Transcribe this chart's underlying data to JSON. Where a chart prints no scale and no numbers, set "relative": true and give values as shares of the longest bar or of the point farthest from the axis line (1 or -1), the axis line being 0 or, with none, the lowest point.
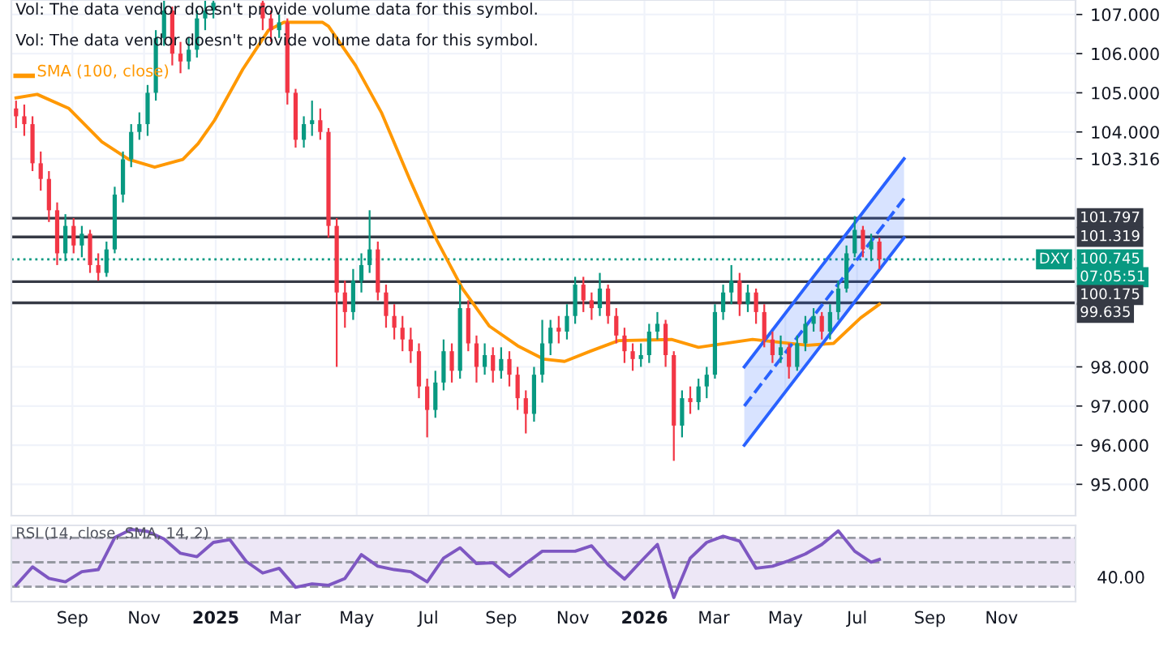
{
  "chart_data": [
    {
      "type": "candlestick",
      "tick_labels": "y",
      "grid": true,
      "annotations": [
        "Vol: The data vendor doesn't provide volume data for this symbol.",
        "Vol: The data vendor doesn't provide volume data for this symbol.",
        "DXY",
        "07:05:51"
      ],
      "xlim": [
        "2024-07-11",
        "2027-01-03"
      ],
      "xticks": [
        {
          "value": "2024-09-01",
          "label": null
        },
        {
          "value": "2024-11-01",
          "label": null
        },
        {
          "value": "2025-01-01",
          "label": null
        },
        {
          "value": "2025-03-01",
          "label": null
        },
        {
          "value": "2025-05-01",
          "label": null
        },
        {
          "value": "2025-07-01",
          "label": null
        },
        {
          "value": "2025-09-01",
          "label": null
        },
        {
          "value": "2025-11-01",
          "label": null
        },
        {
          "value": "2026-01-01",
          "label": null
        },
        {
          "value": "2026-03-01",
          "label": null
        },
        {
          "value": "2026-05-01",
          "label": null
        },
        {
          "value": "2026-07-01",
          "label": null
        },
        {
          "value": "2026-09-01",
          "label": null
        },
        {
          "value": "2026-11-01",
          "label": null
        }
      ],
      "ylim": [
        94.2,
        107.37
      ],
      "yticks": [
        {
          "value": 95,
          "label": "95.000"
        },
        {
          "value": 96,
          "label": "96.000"
        },
        {
          "value": 97,
          "label": "97.000"
        },
        {
          "value": 98,
          "label": "98.000"
        },
        103.316,
        {
          "value": 104,
          "label": "104.000"
        },
        {
          "value": 105,
          "label": "105.000"
        },
        {
          "value": 106,
          "label": "106.000"
        },
        {
          "value": 107,
          "label": "107.000"
        }
      ],
      "ref_lines": [
        {
          "axis": "y",
          "value": 101.797,
          "label": "101.797",
          "color": "#363a45"
        },
        {
          "axis": "y",
          "value": 101.319,
          "label": "101.319",
          "color": "#363a45"
        },
        {
          "axis": "y",
          "value": 100.175,
          "label": "100.175",
          "color": "#363a45"
        },
        {
          "axis": "y",
          "value": 99.635,
          "label": "99.635",
          "color": "#363a45"
        },
        {
          "axis": "y",
          "value": 100.745,
          "label": "100.745",
          "color": "#089981",
          "line_style": "dotted"
        }
      ],
      "x": [
        "2024-07-15",
        "2024-07-22",
        "2024-07-29",
        "2024-08-05",
        "2024-08-12",
        "2024-08-19",
        "2024-08-26",
        "2024-09-02",
        "2024-09-09",
        "2024-09-16",
        "2024-09-23",
        "2024-09-30",
        "2024-10-07",
        "2024-10-14",
        "2024-10-21",
        "2024-10-28",
        "2024-11-04",
        "2024-11-11",
        "2024-11-18",
        "2024-11-25",
        "2024-12-02",
        "2024-12-09",
        "2024-12-16",
        "2024-12-23",
        "2024-12-30",
        "2025-02-10",
        "2025-02-17",
        "2025-02-24",
        "2025-03-03",
        "2025-03-10",
        "2025-03-17",
        "2025-03-24",
        "2025-03-31",
        "2025-04-07",
        "2025-04-14",
        "2025-04-21",
        "2025-04-28",
        "2025-05-05",
        "2025-05-12",
        "2025-05-19",
        "2025-05-26",
        "2025-06-02",
        "2025-06-09",
        "2025-06-16",
        "2025-06-23",
        "2025-06-30",
        "2025-07-07",
        "2025-07-14",
        "2025-07-21",
        "2025-07-28",
        "2025-08-04",
        "2025-08-11",
        "2025-08-18",
        "2025-08-25",
        "2025-09-01",
        "2025-09-08",
        "2025-09-15",
        "2025-09-22",
        "2025-09-29",
        "2025-10-06",
        "2025-10-13",
        "2025-10-20",
        "2025-10-27",
        "2025-11-03",
        "2025-11-10",
        "2025-11-17",
        "2025-11-24",
        "2025-12-01",
        "2025-12-08",
        "2025-12-15",
        "2025-12-22",
        "2025-12-29",
        "2026-01-05",
        "2026-01-12",
        "2026-01-19",
        "2026-01-26",
        "2026-02-02",
        "2026-02-09",
        "2026-02-16",
        "2026-02-23",
        "2026-03-02",
        "2026-03-09",
        "2026-03-16",
        "2026-03-23",
        "2026-03-30",
        "2026-04-06",
        "2026-04-13",
        "2026-04-20",
        "2026-04-27",
        "2026-05-04",
        "2026-05-11",
        "2026-05-18",
        "2026-05-25",
        "2026-06-01",
        "2026-06-08",
        "2026-06-15",
        "2026-06-22",
        "2026-06-29",
        "2026-07-06",
        "2026-07-13",
        "2026-07-20"
      ],
      "ohlc": [
        [
          104.6,
          104.8,
          104.1,
          104.4
        ],
        [
          104.4,
          104.7,
          103.9,
          104.2
        ],
        [
          104.2,
          104.4,
          103.0,
          103.2
        ],
        [
          103.2,
          103.5,
          102.5,
          102.8
        ],
        [
          102.8,
          103.0,
          101.7,
          102.0
        ],
        [
          102.0,
          102.2,
          100.6,
          100.9
        ],
        [
          100.9,
          101.9,
          100.7,
          101.6
        ],
        [
          101.6,
          101.8,
          100.9,
          101.1
        ],
        [
          101.1,
          101.6,
          100.8,
          101.4
        ],
        [
          101.4,
          101.5,
          100.4,
          100.6
        ],
        [
          100.6,
          100.9,
          100.2,
          100.4
        ],
        [
          100.4,
          101.2,
          100.3,
          101.0
        ],
        [
          101.0,
          102.6,
          100.9,
          102.4
        ],
        [
          102.4,
          103.5,
          102.2,
          103.3
        ],
        [
          103.3,
          104.2,
          103.1,
          104.0
        ],
        [
          104.0,
          104.5,
          103.8,
          104.2
        ],
        [
          104.2,
          105.2,
          103.9,
          105.0
        ],
        [
          105.0,
          106.6,
          104.8,
          106.4
        ],
        [
          106.4,
          107.35,
          106.2,
          107.1
        ],
        [
          107.1,
          107.2,
          105.7,
          106.0
        ],
        [
          106.0,
          106.3,
          105.5,
          105.8
        ],
        [
          105.8,
          106.4,
          105.6,
          106.1
        ],
        [
          106.1,
          107.1,
          105.9,
          106.9
        ],
        [
          106.9,
          107.35,
          106.6,
          107.1
        ],
        [
          107.1,
          107.35,
          106.9,
          107.3
        ],
        [
          107.3,
          107.35,
          106.6,
          106.9
        ],
        [
          106.9,
          107.1,
          106.3,
          106.6
        ],
        [
          106.6,
          107.0,
          106.4,
          106.8
        ],
        [
          106.8,
          106.9,
          104.7,
          105.0
        ],
        [
          105.0,
          105.1,
          103.6,
          103.8
        ],
        [
          103.8,
          104.4,
          103.6,
          104.2
        ],
        [
          104.2,
          104.8,
          103.9,
          104.3
        ],
        [
          104.3,
          104.6,
          103.8,
          104.0
        ],
        [
          104.0,
          104.1,
          101.3,
          101.6
        ],
        [
          101.6,
          101.8,
          98.0,
          99.9
        ],
        [
          99.9,
          100.2,
          99.0,
          99.4
        ],
        [
          99.4,
          100.5,
          99.2,
          100.2
        ],
        [
          100.2,
          100.9,
          99.9,
          100.6
        ],
        [
          100.6,
          102.0,
          100.4,
          101.0
        ],
        [
          101.0,
          101.2,
          99.7,
          99.9
        ],
        [
          99.9,
          100.1,
          99.0,
          99.3
        ],
        [
          99.3,
          99.6,
          98.7,
          99.0
        ],
        [
          99.0,
          99.3,
          98.4,
          98.7
        ],
        [
          98.7,
          99.0,
          98.1,
          98.4
        ],
        [
          98.4,
          98.6,
          97.2,
          97.5
        ],
        [
          97.5,
          97.7,
          96.2,
          96.9
        ],
        [
          96.9,
          97.9,
          96.7,
          97.6
        ],
        [
          97.6,
          98.7,
          97.4,
          98.4
        ],
        [
          98.4,
          98.6,
          97.6,
          97.9
        ],
        [
          97.9,
          100.1,
          97.7,
          99.5
        ],
        [
          99.5,
          99.7,
          98.4,
          98.6
        ],
        [
          98.6,
          98.8,
          97.6,
          98.0
        ],
        [
          98.0,
          98.6,
          97.8,
          98.3
        ],
        [
          98.3,
          98.5,
          97.6,
          97.9
        ],
        [
          97.9,
          98.5,
          97.7,
          98.2
        ],
        [
          98.2,
          98.4,
          97.5,
          97.8
        ],
        [
          97.8,
          98.0,
          96.9,
          97.2
        ],
        [
          97.2,
          97.4,
          96.3,
          96.8
        ],
        [
          96.8,
          98.0,
          96.6,
          97.8
        ],
        [
          97.8,
          99.2,
          97.6,
          98.6
        ],
        [
          98.6,
          99.2,
          98.3,
          99.0
        ],
        [
          99.0,
          99.3,
          98.6,
          98.9
        ],
        [
          98.9,
          99.6,
          98.7,
          99.3
        ],
        [
          99.3,
          100.3,
          99.1,
          100.1
        ],
        [
          100.1,
          100.3,
          99.4,
          99.7
        ],
        [
          99.7,
          99.9,
          99.2,
          99.5
        ],
        [
          99.5,
          100.4,
          99.3,
          100.0
        ],
        [
          100.0,
          100.1,
          99.1,
          99.3
        ],
        [
          99.3,
          99.5,
          98.6,
          98.8
        ],
        [
          98.8,
          99.0,
          98.1,
          98.4
        ],
        [
          98.4,
          98.6,
          97.9,
          98.2
        ],
        [
          98.2,
          98.6,
          98.0,
          98.3
        ],
        [
          98.3,
          99.1,
          98.1,
          98.9
        ],
        [
          98.9,
          99.4,
          98.7,
          99.1
        ],
        [
          99.1,
          99.2,
          98.0,
          98.3
        ],
        [
          98.3,
          98.4,
          95.6,
          96.5
        ],
        [
          96.5,
          97.4,
          96.2,
          97.2
        ],
        [
          97.2,
          97.5,
          96.8,
          97.1
        ],
        [
          97.1,
          97.7,
          96.9,
          97.5
        ],
        [
          97.5,
          98.0,
          97.2,
          97.8
        ],
        [
          97.8,
          99.6,
          97.7,
          99.4
        ],
        [
          99.4,
          100.1,
          99.2,
          99.9
        ],
        [
          99.9,
          100.6,
          99.6,
          100.2
        ],
        [
          100.2,
          100.4,
          99.3,
          99.6
        ],
        [
          99.6,
          100.1,
          99.4,
          99.9
        ],
        [
          99.9,
          100.0,
          99.1,
          99.4
        ],
        [
          99.4,
          99.6,
          98.5,
          98.7
        ],
        [
          98.7,
          98.9,
          98.1,
          98.3
        ],
        [
          98.3,
          98.8,
          98.1,
          98.5
        ],
        [
          98.5,
          98.6,
          97.7,
          98.0
        ],
        [
          98.0,
          98.8,
          97.9,
          98.6
        ],
        [
          98.6,
          99.3,
          98.4,
          99.1
        ],
        [
          99.1,
          99.5,
          98.9,
          99.3
        ],
        [
          99.3,
          99.4,
          98.7,
          98.9
        ],
        [
          98.9,
          99.6,
          98.7,
          99.4
        ],
        [
          99.4,
          100.2,
          99.2,
          100.0
        ],
        [
          100.0,
          101.1,
          99.9,
          100.9
        ],
        [
          100.9,
          101.85,
          100.8,
          101.5
        ],
        [
          101.5,
          101.6,
          100.8,
          101.0
        ],
        [
          101.0,
          101.4,
          100.7,
          101.2
        ],
        [
          101.2,
          101.3,
          100.5,
          100.745
        ]
      ],
      "colors": [
        "#f23645",
        "#f23645",
        "#f23645",
        "#f23645",
        "#f23645",
        "#f23645",
        "#089981",
        "#f23645",
        "#089981",
        "#f23645",
        "#f23645",
        "#089981",
        "#089981",
        "#089981",
        "#089981",
        "#089981",
        "#089981",
        "#089981",
        "#089981",
        "#f23645",
        "#f23645",
        "#089981",
        "#089981",
        "#089981",
        "#089981",
        "#f23645",
        "#f23645",
        "#089981",
        "#f23645",
        "#f23645",
        "#089981",
        "#089981",
        "#f23645",
        "#f23645",
        "#f23645",
        "#f23645",
        "#089981",
        "#089981",
        "#089981",
        "#f23645",
        "#f23645",
        "#f23645",
        "#f23645",
        "#f23645",
        "#f23645",
        "#f23645",
        "#089981",
        "#089981",
        "#f23645",
        "#089981",
        "#f23645",
        "#f23645",
        "#089981",
        "#f23645",
        "#089981",
        "#f23645",
        "#f23645",
        "#f23645",
        "#089981",
        "#089981",
        "#089981",
        "#f23645",
        "#089981",
        "#089981",
        "#f23645",
        "#f23645",
        "#089981",
        "#f23645",
        "#f23645",
        "#f23645",
        "#f23645",
        "#089981",
        "#089981",
        "#089981",
        "#f23645",
        "#f23645",
        "#089981",
        "#f23645",
        "#089981",
        "#089981",
        "#089981",
        "#089981",
        "#089981",
        "#f23645",
        "#089981",
        "#f23645",
        "#f23645",
        "#f23645",
        "#089981",
        "#f23645",
        "#089981",
        "#089981",
        "#089981",
        "#f23645",
        "#089981",
        "#089981",
        "#089981",
        "#089981",
        "#f23645",
        "#089981",
        "#f23645"
      ],
      "series": [
        {
          "type": "line",
          "name": "SMA (100, close)",
          "color": "#ff9800",
          "x": [
            "2024-07-15",
            "2024-08-02",
            "2024-08-29",
            "2024-09-26",
            "2024-10-19",
            "2024-11-10",
            "2024-12-04",
            "2024-12-17",
            "2024-12-31",
            "2025-01-24",
            "2025-02-15",
            "2025-02-28",
            "2025-04-02",
            "2025-04-07",
            "2025-04-30",
            "2025-05-22",
            "2025-06-15",
            "2025-07-08",
            "2025-07-30",
            "2025-08-22",
            "2025-09-15",
            "2025-10-07",
            "2025-10-25",
            "2025-11-16",
            "2025-12-10",
            "2026-01-24",
            "2026-02-16",
            "2026-04-03",
            "2026-05-20",
            "2026-06-11",
            "2026-07-04",
            "2026-07-20"
          ],
          "values": [
            104.87,
            104.96,
            104.6,
            103.75,
            103.3,
            103.1,
            103.3,
            103.7,
            104.3,
            105.6,
            106.6,
            106.8,
            106.8,
            106.7,
            105.7,
            104.5,
            102.8,
            101.25,
            100.0,
            99.04,
            98.54,
            98.2,
            98.14,
            98.4,
            98.67,
            98.7,
            98.5,
            98.7,
            98.55,
            98.6,
            99.25,
            99.6
          ]
        },
        {
          "type": "line",
          "color": "#2962ff",
          "line_style": "dashed",
          "x": [
            "2026-03-27",
            "2026-08-10"
          ],
          "values": [
            97.0,
            102.3
          ],
          "lower": [
            96.0,
            101.3
          ],
          "upper": [
            98.0,
            103.316
          ]
        },
        {
          "type": "line",
          "color": "#2962ff",
          "x": [
            "2026-03-27",
            "2026-08-10"
          ],
          "values": [
            98.0,
            103.316
          ]
        },
        {
          "type": "line",
          "color": "#2962ff",
          "x": [
            "2026-03-27",
            "2026-08-10"
          ],
          "values": [
            96.0,
            101.3
          ]
        }
      ]
    },
    {
      "type": "line",
      "relative": true,
      "title": "RSI (14, close, SMA, 14, 2)",
      "annotations": [
        "40.00"
      ],
      "xlim": [
        "2024-07-11",
        "2027-01-03"
      ],
      "xticks": [
        {
          "value": "2024-09-01",
          "label": "Sep"
        },
        {
          "value": "2024-11-01",
          "label": "Nov"
        },
        {
          "value": "2025-01-01",
          "label": "2025"
        },
        {
          "value": "2025-03-01",
          "label": "Mar"
        },
        {
          "value": "2025-05-01",
          "label": "May"
        },
        {
          "value": "2025-07-01",
          "label": "Jul"
        },
        {
          "value": "2025-09-01",
          "label": "Sep"
        },
        {
          "value": "2025-11-01",
          "label": "Nov"
        },
        {
          "value": "2026-01-01",
          "label": "2026"
        },
        {
          "value": "2026-03-01",
          "label": "Mar"
        },
        {
          "value": "2026-05-01",
          "label": "May"
        },
        {
          "value": "2026-07-01",
          "label": "Jul"
        },
        {
          "value": "2026-09-01",
          "label": "Sep"
        },
        {
          "value": "2026-11-01",
          "label": "Nov"
        }
      ],
      "ref_lines": [
        {
          "axis": "y",
          "value": 0.877,
          "color": "#9598a1",
          "line_style": "dashed"
        },
        {
          "axis": "y",
          "value": 0.518,
          "color": "#9598a1",
          "line_style": "dashed"
        },
        {
          "axis": "y",
          "value": 0.158,
          "color": "#9598a1",
          "line_style": "dashed"
        }
      ],
      "bands": [
        {
          "axis": "y",
          "from": 0.158,
          "to": 0.877,
          "color": "#ede7f6"
        }
      ],
      "x": [
        "2024-07-15",
        "2024-07-29",
        "2024-08-12",
        "2024-08-26",
        "2024-09-09",
        "2024-09-23",
        "2024-10-07",
        "2024-10-21",
        "2024-11-04",
        "2024-11-18",
        "2024-12-02",
        "2024-12-16",
        "2024-12-30",
        "2025-01-13",
        "2025-01-27",
        "2025-02-10",
        "2025-02-24",
        "2025-03-10",
        "2025-03-24",
        "2025-04-07",
        "2025-04-21",
        "2025-05-05",
        "2025-05-19",
        "2025-06-02",
        "2025-06-16",
        "2025-06-30",
        "2025-07-14",
        "2025-07-28",
        "2025-08-11",
        "2025-08-25",
        "2025-09-08",
        "2025-09-22",
        "2025-10-06",
        "2025-10-20",
        "2025-11-03",
        "2025-11-17",
        "2025-12-01",
        "2025-12-15",
        "2025-12-29",
        "2026-01-12",
        "2026-01-26",
        "2026-02-09",
        "2026-02-23",
        "2026-03-09",
        "2026-03-23",
        "2026-04-06",
        "2026-04-20",
        "2026-05-04",
        "2026-05-18",
        "2026-06-01",
        "2026-06-15",
        "2026-06-29",
        "2026-07-13",
        "2026-07-20"
      ],
      "series": [
        {
          "color": "#7e57c2",
          "values": [
            0.18,
            0.45,
            0.28,
            0.23,
            0.38,
            0.41,
            0.88,
            1.0,
            0.97,
            0.86,
            0.65,
            0.6,
            0.81,
            0.85,
            0.53,
            0.36,
            0.43,
            0.15,
            0.2,
            0.18,
            0.28,
            0.63,
            0.46,
            0.41,
            0.38,
            0.23,
            0.58,
            0.73,
            0.5,
            0.51,
            0.31,
            0.5,
            0.68,
            0.68,
            0.68,
            0.76,
            0.48,
            0.27,
            0.53,
            0.78,
            0.0,
            0.58,
            0.81,
            0.9,
            0.83,
            0.43,
            0.46,
            0.54,
            0.64,
            0.78,
            0.98,
            0.68,
            0.52,
            0.56
          ]
        }
      ]
    }
  ]
}
